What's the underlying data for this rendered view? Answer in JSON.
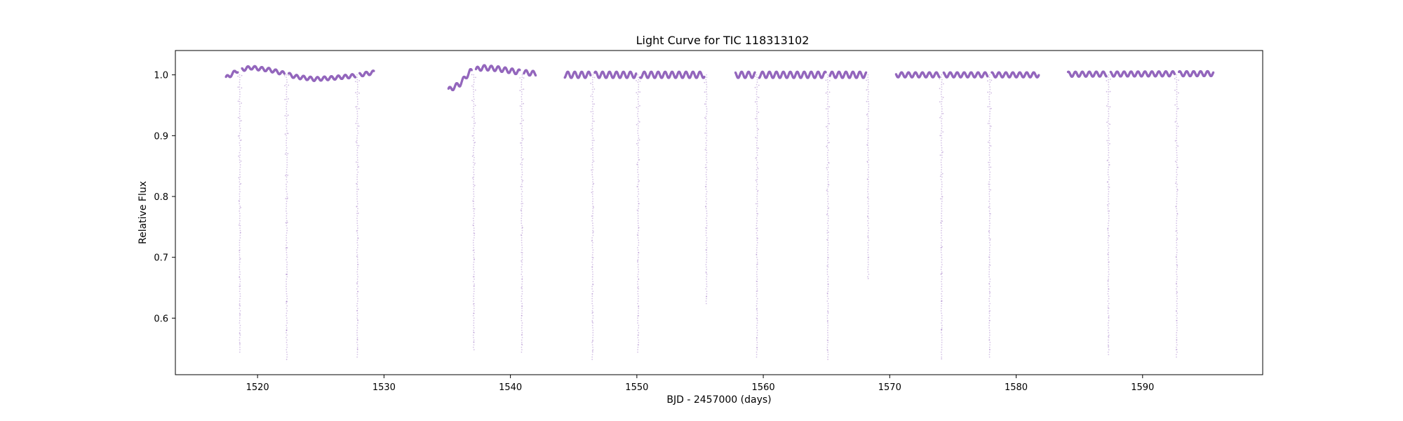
{
  "chart_data": {
    "type": "scatter",
    "title": "Light Curve for TIC 118313102",
    "xlabel": "BJD - 2457000 (days)",
    "ylabel": "Relative Flux",
    "xlim": [
      1513.5,
      1599.5
    ],
    "ylim": [
      0.507,
      1.04
    ],
    "xticks": [
      1520,
      1530,
      1540,
      1550,
      1560,
      1570,
      1580,
      1590
    ],
    "yticks": [
      0.6,
      0.7,
      0.8,
      0.9,
      1.0
    ],
    "xtick_labels": [
      "1520",
      "1530",
      "1540",
      "1550",
      "1560",
      "1570",
      "1580",
      "1590"
    ],
    "ytick_labels": [
      "0.6",
      "0.7",
      "0.8",
      "0.9",
      "1.0"
    ],
    "grid": false,
    "legend": "none",
    "marker_color": "#9467bd",
    "series": [
      {
        "segments": [
          {
            "start": 1517.5,
            "end": 1529.2,
            "baseline": [
              [
                1517.5,
                0.995
              ],
              [
                1518.5,
                1.008
              ],
              [
                1519.5,
                1.012
              ],
              [
                1521.0,
                1.008
              ],
              [
                1522.5,
                1.0
              ],
              [
                1523.0,
                0.997
              ],
              [
                1524.5,
                0.993
              ],
              [
                1526.0,
                0.995
              ],
              [
                1527.5,
                0.998
              ],
              [
                1529.2,
                1.004
              ]
            ],
            "osc_amp": 0.003,
            "osc_period": 0.55
          },
          {
            "start": 1535.1,
            "end": 1542.0,
            "baseline": [
              [
                1535.1,
                0.975
              ],
              [
                1536.0,
                0.985
              ],
              [
                1536.8,
                1.005
              ],
              [
                1537.8,
                1.012
              ],
              [
                1539.0,
                1.01
              ],
              [
                1540.5,
                1.005
              ],
              [
                1542.0,
                1.002
              ]
            ],
            "osc_amp": 0.004,
            "osc_period": 0.55
          },
          {
            "start": 1544.3,
            "end": 1555.5,
            "baseline": [
              [
                1544.3,
                1.0
              ],
              [
                1555.5,
                1.0
              ]
            ],
            "osc_amp": 0.005,
            "osc_period": 0.55
          },
          {
            "start": 1557.8,
            "end": 1568.3,
            "baseline": [
              [
                1557.8,
                1.0
              ],
              [
                1568.3,
                1.0
              ]
            ],
            "osc_amp": 0.005,
            "osc_period": 0.55
          },
          {
            "start": 1570.5,
            "end": 1581.8,
            "baseline": [
              [
                1570.5,
                1.0
              ],
              [
                1581.8,
                1.0
              ]
            ],
            "osc_amp": 0.004,
            "osc_period": 0.55
          },
          {
            "start": 1584.1,
            "end": 1595.6,
            "baseline": [
              [
                1584.1,
                1.001
              ],
              [
                1595.6,
                1.002
              ]
            ],
            "osc_amp": 0.004,
            "osc_period": 0.55
          }
        ],
        "eclipses": [
          {
            "t": 1518.6,
            "depth": 0.542
          },
          {
            "t": 1522.3,
            "depth": 0.532
          },
          {
            "t": 1527.9,
            "depth": 0.533
          },
          {
            "t": 1537.1,
            "depth": 0.545
          },
          {
            "t": 1540.9,
            "depth": 0.541
          },
          {
            "t": 1546.5,
            "depth": 0.53
          },
          {
            "t": 1550.1,
            "depth": 0.54
          },
          {
            "t": 1555.5,
            "depth": 0.622
          },
          {
            "t": 1559.5,
            "depth": 0.535
          },
          {
            "t": 1565.1,
            "depth": 0.531
          },
          {
            "t": 1568.3,
            "depth": 0.665
          },
          {
            "t": 1574.1,
            "depth": 0.533
          },
          {
            "t": 1577.9,
            "depth": 0.532
          },
          {
            "t": 1587.3,
            "depth": 0.538
          },
          {
            "t": 1592.7,
            "depth": 0.532
          }
        ]
      }
    ]
  }
}
